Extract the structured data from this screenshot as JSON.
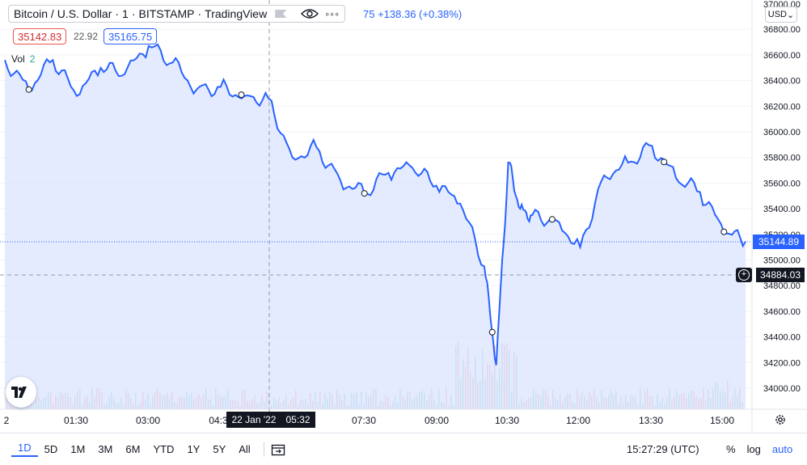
{
  "header": {
    "symbol": "Bitcoin / U.S. Dollar",
    "interval": "1",
    "exchange": "BITSTAMP",
    "source": "TradingView",
    "change": "75 +138.36 (+0.38%)"
  },
  "quote": {
    "bid": "35142.83",
    "spread": "22.92",
    "ask": "35165.75"
  },
  "volume_legend": {
    "label": "Vol",
    "value": "2"
  },
  "currency": "USD",
  "price_axis": {
    "top_tick": "37000.00",
    "ticks": [
      "36800.00",
      "36600.00",
      "36400.00",
      "36200.00",
      "36000.00",
      "35800.00",
      "35600.00",
      "35400.00",
      "35200.00",
      "35000.00",
      "34800.00",
      "34600.00",
      "34400.00",
      "34200.00",
      "34000.00"
    ]
  },
  "last_price": "35144.89",
  "crosshair_price": "34884.03",
  "crosshair_time": {
    "date": "22 Jan '22",
    "time": "05:32"
  },
  "time_axis": [
    "2",
    "01:30",
    "03:00",
    "04:3",
    "07:30",
    "09:00",
    "10:30",
    "12:00",
    "13:30",
    "15:00"
  ],
  "range_buttons": [
    "1D",
    "5D",
    "1M",
    "3M",
    "6M",
    "YTD",
    "1Y",
    "5Y",
    "All"
  ],
  "active_range": "1D",
  "clock": "15:27:29 (UTC)",
  "scale_buttons": {
    "percent": "%",
    "log": "log",
    "auto": "auto"
  },
  "colors": {
    "line": "#2962ff",
    "area": "#dbe4ff",
    "vol_up": "#26a69a",
    "vol_down": "#ef5350"
  },
  "chart_data": {
    "type": "area",
    "x_unit": "time UTC",
    "x": [
      "00:00",
      "00:30",
      "01:00",
      "01:30",
      "02:00",
      "02:30",
      "03:00",
      "03:30",
      "04:00",
      "04:30",
      "05:00",
      "05:30",
      "06:00",
      "06:30",
      "07:00",
      "07:30",
      "08:00",
      "08:30",
      "09:00",
      "09:30",
      "10:00",
      "10:15",
      "10:30",
      "10:45",
      "11:00",
      "11:30",
      "12:00",
      "12:30",
      "13:00",
      "13:30",
      "14:00",
      "14:30",
      "15:00",
      "15:27"
    ],
    "values": [
      36560,
      36330,
      36560,
      36280,
      36500,
      36450,
      36670,
      36540,
      36330,
      36350,
      36280,
      36260,
      35800,
      35880,
      35620,
      35520,
      35680,
      35720,
      35580,
      35440,
      34950,
      34180,
      35760,
      35400,
      35350,
      35310,
      35100,
      35660,
      35760,
      35890,
      35640,
      35530,
      35220,
      35145
    ],
    "ylim": [
      33880,
      37000
    ],
    "markers_x": [
      "00:30",
      "04:56",
      "07:30",
      "10:10",
      "11:25",
      "13:45",
      "15:00"
    ],
    "grid": true
  }
}
